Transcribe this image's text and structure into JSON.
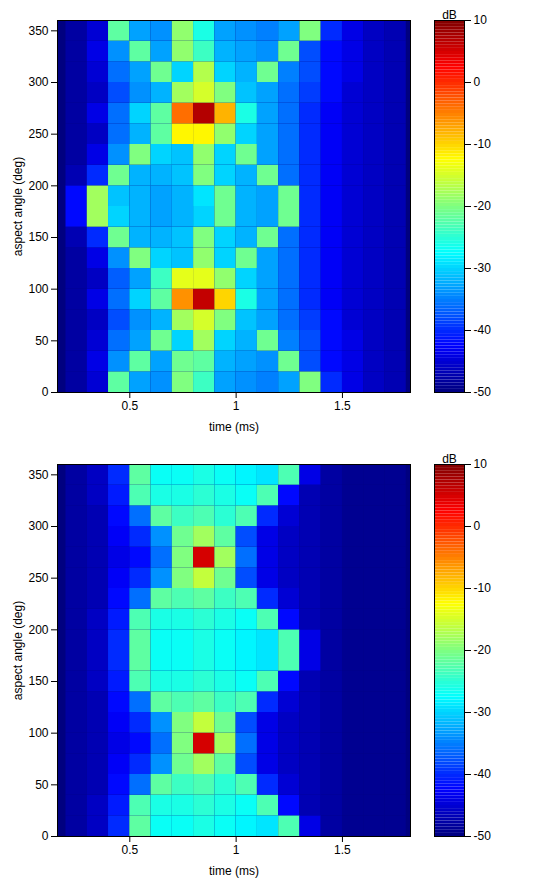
{
  "chart_data": [
    {
      "type": "heatmap",
      "x_label": "time (ms)",
      "y_label": "aspect angle (deg)",
      "xlim": [
        0.16,
        1.82
      ],
      "ylim": [
        0,
        360
      ],
      "xticks": [
        0.5,
        1,
        1.5
      ],
      "yticks": [
        0,
        50,
        100,
        150,
        200,
        250,
        300,
        350
      ],
      "x_bins": [
        0.2,
        0.3,
        0.4,
        0.5,
        0.6,
        0.7,
        0.8,
        0.9,
        1.0,
        1.1,
        1.2,
        1.3,
        1.4,
        1.5,
        1.6,
        1.7,
        1.8
      ],
      "y_bins": [
        0,
        20,
        40,
        60,
        80,
        100,
        120,
        140,
        160,
        180,
        200,
        220,
        240,
        260,
        280,
        300,
        320,
        340,
        360
      ],
      "values": [
        [
          -48,
          -45,
          -22,
          -33,
          -34,
          -20,
          -24,
          -33,
          -34,
          -35,
          -33,
          -20,
          -40,
          -44,
          -46,
          -47
        ],
        [
          -48,
          -44,
          -34,
          -22,
          -33,
          -21,
          -22,
          -32,
          -33,
          -34,
          -21,
          -38,
          -42,
          -44,
          -46,
          -47
        ],
        [
          -48,
          -45,
          -36,
          -33,
          -21,
          -30,
          -18,
          -30,
          -32,
          -21,
          -35,
          -38,
          -42,
          -44,
          -46,
          -47
        ],
        [
          -48,
          -46,
          -38,
          -34,
          -32,
          -18,
          -15,
          -20,
          -31,
          -33,
          -36,
          -39,
          -42,
          -45,
          -46,
          -47
        ],
        [
          -48,
          -44,
          -36,
          -30,
          -22,
          -6,
          6,
          -10,
          -26,
          -33,
          -36,
          -40,
          -43,
          -45,
          -46,
          -47
        ],
        [
          -48,
          -46,
          -37,
          -33,
          -24,
          -14,
          -14,
          -19,
          -30,
          -33,
          -36,
          -40,
          -43,
          -45,
          -46,
          -47
        ],
        [
          -48,
          -44,
          -34,
          -20,
          -30,
          -31,
          -19,
          -30,
          -21,
          -33,
          -36,
          -40,
          -43,
          -45,
          -46,
          -47
        ],
        [
          -47,
          -40,
          -21,
          -32,
          -32,
          -31,
          -20,
          -30,
          -32,
          -21,
          -36,
          -40,
          -43,
          -45,
          -46,
          -47
        ],
        [
          -42,
          -18,
          -30,
          -32,
          -33,
          -32,
          -30,
          -21,
          -32,
          -33,
          -21,
          -40,
          -43,
          -45,
          -46,
          -47
        ],
        [
          -42,
          -18,
          -31,
          -32,
          -33,
          -32,
          -29,
          -21,
          -32,
          -33,
          -21,
          -40,
          -43,
          -45,
          -46,
          -47
        ],
        [
          -47,
          -40,
          -21,
          -32,
          -32,
          -31,
          -20,
          -30,
          -32,
          -21,
          -36,
          -40,
          -43,
          -45,
          -46,
          -47
        ],
        [
          -48,
          -44,
          -34,
          -20,
          -30,
          -31,
          -19,
          -30,
          -21,
          -33,
          -36,
          -40,
          -43,
          -45,
          -46,
          -47
        ],
        [
          -48,
          -46,
          -36,
          -32,
          -22,
          -12,
          -12,
          -19,
          -30,
          -33,
          -36,
          -40,
          -43,
          -45,
          -46,
          -47
        ],
        [
          -48,
          -44,
          -36,
          -30,
          -22,
          -4,
          7,
          -8,
          -26,
          -33,
          -36,
          -40,
          -43,
          -45,
          -46,
          -47
        ],
        [
          -48,
          -46,
          -38,
          -34,
          -32,
          -18,
          -15,
          -20,
          -31,
          -33,
          -36,
          -39,
          -42,
          -45,
          -46,
          -47
        ],
        [
          -48,
          -45,
          -36,
          -33,
          -21,
          -30,
          -17,
          -30,
          -32,
          -21,
          -35,
          -38,
          -42,
          -44,
          -46,
          -47
        ],
        [
          -48,
          -44,
          -34,
          -22,
          -33,
          -19,
          -24,
          -32,
          -33,
          -34,
          -21,
          -38,
          -42,
          -44,
          -46,
          -47
        ],
        [
          -48,
          -45,
          -22,
          -33,
          -34,
          -19,
          -26,
          -33,
          -34,
          -35,
          -33,
          -20,
          -40,
          -44,
          -46,
          -47
        ]
      ],
      "colorbar": {
        "label": "dB",
        "lim": [
          -50,
          10
        ],
        "ticks": [
          10,
          0,
          -10,
          -20,
          -30,
          -40,
          -50
        ]
      }
    },
    {
      "type": "heatmap",
      "x_label": "time (ms)",
      "y_label": "aspect angle (deg)",
      "xlim": [
        0.16,
        1.82
      ],
      "ylim": [
        0,
        360
      ],
      "xticks": [
        0.5,
        1,
        1.5
      ],
      "yticks": [
        0,
        50,
        100,
        150,
        200,
        250,
        300,
        350
      ],
      "x_bins": [
        0.2,
        0.3,
        0.4,
        0.5,
        0.6,
        0.7,
        0.8,
        0.9,
        1.0,
        1.1,
        1.2,
        1.3,
        1.4,
        1.5,
        1.6,
        1.7,
        1.8
      ],
      "y_bins": [
        0,
        20,
        40,
        60,
        80,
        100,
        120,
        140,
        160,
        180,
        200,
        220,
        240,
        260,
        280,
        300,
        320,
        340,
        360
      ],
      "values": [
        [
          -48,
          -46,
          -40,
          -22,
          -27,
          -27,
          -26,
          -27,
          -28,
          -29,
          -23,
          -44,
          -48,
          -49,
          -49,
          -49
        ],
        [
          -48,
          -46,
          -41,
          -23,
          -26,
          -26,
          -25,
          -26,
          -27,
          -23,
          -42,
          -47,
          -48,
          -49,
          -49,
          -49
        ],
        [
          -48,
          -47,
          -42,
          -36,
          -22,
          -24,
          -23,
          -25,
          -23,
          -40,
          -45,
          -47,
          -48,
          -49,
          -49,
          -49
        ],
        [
          -48,
          -47,
          -43,
          -40,
          -34,
          -21,
          -18,
          -22,
          -38,
          -44,
          -46,
          -47,
          -48,
          -49,
          -49,
          -49
        ],
        [
          -48,
          -47,
          -44,
          -42,
          -36,
          -20,
          5,
          -18,
          -36,
          -44,
          -46,
          -47,
          -48,
          -49,
          -49,
          -49
        ],
        [
          -48,
          -47,
          -43,
          -40,
          -34,
          -20,
          -16,
          -21,
          -38,
          -44,
          -46,
          -47,
          -48,
          -49,
          -49,
          -49
        ],
        [
          -48,
          -47,
          -42,
          -36,
          -22,
          -23,
          -22,
          -24,
          -23,
          -40,
          -45,
          -47,
          -48,
          -49,
          -49,
          -49
        ],
        [
          -48,
          -46,
          -41,
          -23,
          -26,
          -26,
          -25,
          -26,
          -27,
          -23,
          -42,
          -47,
          -48,
          -49,
          -49,
          -49
        ],
        [
          -48,
          -46,
          -40,
          -22,
          -27,
          -27,
          -26,
          -27,
          -28,
          -29,
          -23,
          -44,
          -48,
          -49,
          -49,
          -49
        ],
        [
          -48,
          -46,
          -40,
          -22,
          -27,
          -27,
          -26,
          -27,
          -28,
          -29,
          -23,
          -44,
          -48,
          -49,
          -49,
          -49
        ],
        [
          -48,
          -46,
          -41,
          -23,
          -26,
          -26,
          -25,
          -26,
          -27,
          -23,
          -42,
          -47,
          -48,
          -49,
          -49,
          -49
        ],
        [
          -48,
          -47,
          -42,
          -36,
          -22,
          -23,
          -22,
          -24,
          -23,
          -40,
          -45,
          -47,
          -48,
          -49,
          -49,
          -49
        ],
        [
          -48,
          -47,
          -43,
          -40,
          -34,
          -20,
          -16,
          -21,
          -38,
          -44,
          -46,
          -47,
          -48,
          -49,
          -49,
          -49
        ],
        [
          -48,
          -47,
          -44,
          -42,
          -36,
          -20,
          5,
          -18,
          -36,
          -44,
          -46,
          -47,
          -48,
          -49,
          -49,
          -49
        ],
        [
          -48,
          -47,
          -43,
          -40,
          -34,
          -21,
          -18,
          -22,
          -38,
          -44,
          -46,
          -47,
          -48,
          -49,
          -49,
          -49
        ],
        [
          -48,
          -47,
          -42,
          -36,
          -22,
          -24,
          -23,
          -25,
          -23,
          -40,
          -45,
          -47,
          -48,
          -49,
          -49,
          -49
        ],
        [
          -48,
          -46,
          -41,
          -23,
          -26,
          -26,
          -25,
          -26,
          -27,
          -23,
          -42,
          -47,
          -48,
          -49,
          -49,
          -49
        ],
        [
          -48,
          -46,
          -40,
          -22,
          -27,
          -27,
          -26,
          -27,
          -28,
          -29,
          -23,
          -44,
          -48,
          -49,
          -49,
          -49
        ]
      ],
      "colorbar": {
        "label": "dB",
        "lim": [
          -50,
          10
        ],
        "ticks": [
          10,
          0,
          -10,
          -20,
          -30,
          -40,
          -50
        ]
      }
    }
  ]
}
